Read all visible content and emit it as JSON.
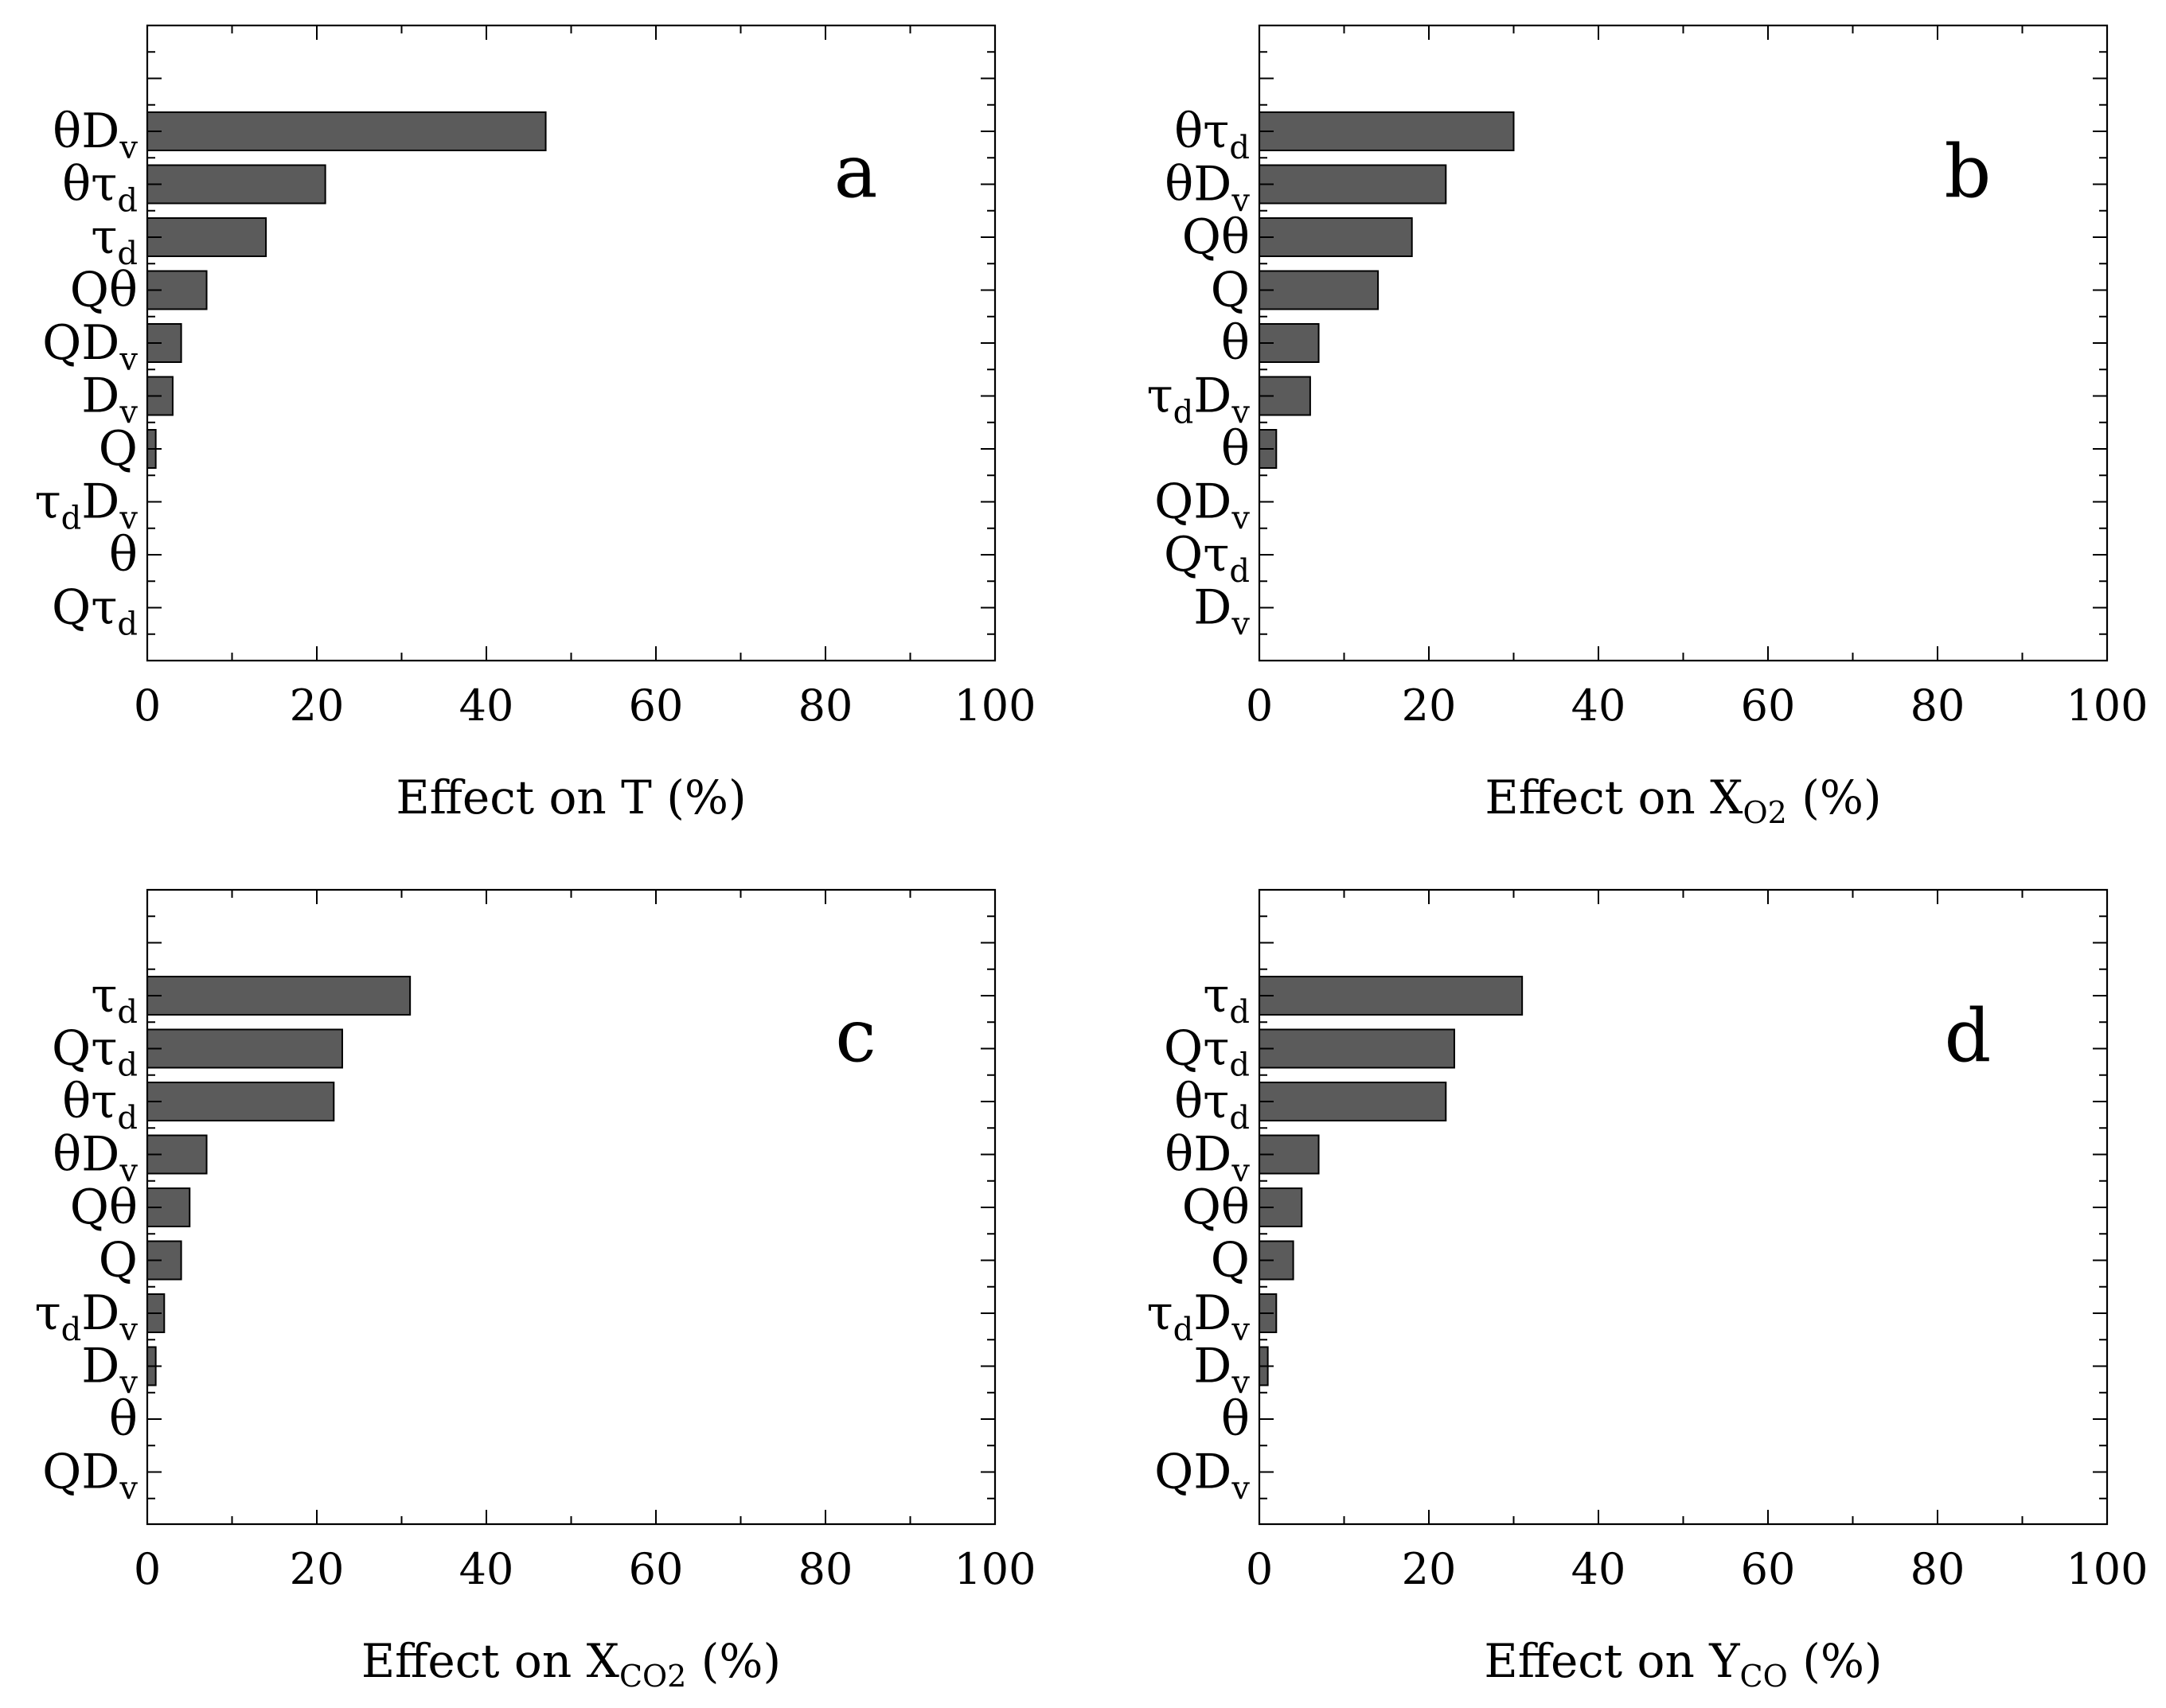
{
  "chart_data": [
    {
      "type": "bar",
      "orientation": "horizontal",
      "panel_label": "a",
      "categories": [
        {
          "base": "θD",
          "sub": "v"
        },
        {
          "base": "θτ",
          "sub": "d"
        },
        {
          "base": "τ",
          "sub": "d"
        },
        {
          "base": "Qθ",
          "sub": ""
        },
        {
          "base": "QD",
          "sub": "v"
        },
        {
          "base": "D",
          "sub": "v"
        },
        {
          "base": "Q",
          "sub": ""
        },
        {
          "base": "τ",
          "sub": "d",
          "base2": "D",
          "sub2": "v"
        },
        {
          "base": "θ",
          "sub": ""
        },
        {
          "base": "Qτ",
          "sub": "d"
        }
      ],
      "values": [
        47,
        21,
        14,
        7,
        4,
        3,
        1,
        0,
        0,
        0
      ],
      "xlabel": {
        "prefix": "Effect on T",
        "sub": "",
        "suffix": " (%)"
      },
      "xlim": [
        0,
        100
      ],
      "xticks": [
        "0",
        "20",
        "40",
        "60",
        "80",
        "100"
      ]
    },
    {
      "type": "bar",
      "orientation": "horizontal",
      "panel_label": "b",
      "categories": [
        {
          "base": "θτ",
          "sub": "d"
        },
        {
          "base": "θD",
          "sub": "v"
        },
        {
          "base": "Qθ",
          "sub": ""
        },
        {
          "base": "Q",
          "sub": ""
        },
        {
          "base": "θ",
          "sub": ""
        },
        {
          "base": "τ",
          "sub": "d",
          "base2": "D",
          "sub2": "v"
        },
        {
          "base": "θ",
          "sub": ""
        },
        {
          "base": "QD",
          "sub": "v"
        },
        {
          "base": "Qτ",
          "sub": "d"
        },
        {
          "base": "D",
          "sub": "v"
        }
      ],
      "values": [
        30,
        22,
        18,
        14,
        7,
        6,
        2,
        0,
        0,
        0
      ],
      "xlabel": {
        "prefix": "Effect on X",
        "sub": "O2",
        "suffix": " (%)"
      },
      "xlim": [
        0,
        100
      ],
      "xticks": [
        "0",
        "20",
        "40",
        "60",
        "80",
        "100"
      ]
    },
    {
      "type": "bar",
      "orientation": "horizontal",
      "panel_label": "c",
      "categories": [
        {
          "base": "τ",
          "sub": "d"
        },
        {
          "base": "Qτ",
          "sub": "d"
        },
        {
          "base": "θτ",
          "sub": "d"
        },
        {
          "base": "θD",
          "sub": "v"
        },
        {
          "base": "Qθ",
          "sub": ""
        },
        {
          "base": "Q",
          "sub": ""
        },
        {
          "base": "τ",
          "sub": "d",
          "base2": "D",
          "sub2": "v"
        },
        {
          "base": "D",
          "sub": "v"
        },
        {
          "base": "θ",
          "sub": ""
        },
        {
          "base": "QD",
          "sub": "v"
        }
      ],
      "values": [
        31,
        23,
        22,
        7,
        5,
        4,
        2,
        1,
        0,
        0
      ],
      "xlabel": {
        "prefix": "Effect on X",
        "sub": "CO2",
        "suffix": " (%)"
      },
      "xlim": [
        0,
        100
      ],
      "xticks": [
        "0",
        "20",
        "40",
        "60",
        "80",
        "100"
      ]
    },
    {
      "type": "bar",
      "orientation": "horizontal",
      "panel_label": "d",
      "categories": [
        {
          "base": "τ",
          "sub": "d"
        },
        {
          "base": "Qτ",
          "sub": "d"
        },
        {
          "base": "θτ",
          "sub": "d"
        },
        {
          "base": "θD",
          "sub": "v"
        },
        {
          "base": "Qθ",
          "sub": ""
        },
        {
          "base": "Q",
          "sub": ""
        },
        {
          "base": "τ",
          "sub": "d",
          "base2": "D",
          "sub2": "v"
        },
        {
          "base": "D",
          "sub": "v"
        },
        {
          "base": "θ",
          "sub": ""
        },
        {
          "base": "QD",
          "sub": "v"
        }
      ],
      "values": [
        31,
        23,
        22,
        7,
        5,
        4,
        2,
        1,
        0,
        0
      ],
      "xlabel": {
        "prefix": "Effect on Y",
        "sub": "CO",
        "suffix": " (%)"
      },
      "xlim": [
        0,
        100
      ],
      "xticks": [
        "0",
        "20",
        "40",
        "60",
        "80",
        "100"
      ]
    }
  ],
  "colors": {
    "bar_fill": "#5b5b5b",
    "axis": "#000000",
    "background": "#ffffff"
  }
}
